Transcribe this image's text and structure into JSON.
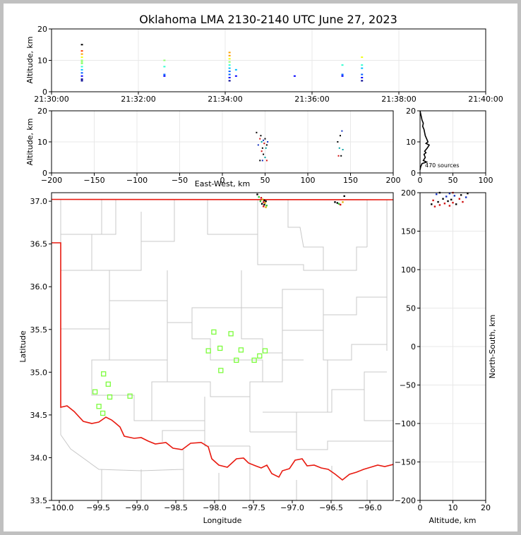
{
  "title": "Oklahoma LMA 2130-2140 UTC June 27, 2023",
  "chart_data": [
    {
      "id": "time_height",
      "type": "scatter",
      "xlabel": "",
      "ylabel": "Altitude, km",
      "xlim": [
        "21:30:00",
        "21:40:00"
      ],
      "ylim": [
        0,
        20
      ],
      "xticks": [
        "21:30:00",
        "21:32:00",
        "21:34:00",
        "21:36:00",
        "21:38:00",
        "21:40:00"
      ],
      "yticks": [
        0,
        10,
        20
      ],
      "grid": true,
      "color_by": "time",
      "points": [
        {
          "t": 0.7,
          "alts": [
            3.5,
            4,
            5,
            6,
            7,
            8,
            9,
            9.5,
            10,
            11,
            12,
            13,
            15
          ]
        },
        {
          "t": 2.6,
          "alts": [
            5,
            5.5,
            8,
            10
          ]
        },
        {
          "t": 4.1,
          "alts": [
            3.5,
            4.5,
            5.5,
            6.5,
            7.5,
            8.5,
            9.5,
            10.5,
            11.5,
            12.5
          ]
        },
        {
          "t": 4.25,
          "alts": [
            5,
            7
          ]
        },
        {
          "t": 5.6,
          "alts": [
            5
          ]
        },
        {
          "t": 6.7,
          "alts": [
            5,
            5.5,
            8.5
          ]
        },
        {
          "t": 7.15,
          "alts": [
            3.5,
            4.5,
            5.5,
            7.5,
            8.5,
            11
          ]
        }
      ]
    },
    {
      "id": "ew_altitude",
      "type": "scatter",
      "xlabel": "East-West, km",
      "ylabel": "Altitude, km",
      "xlim": [
        -200,
        200
      ],
      "ylim": [
        0,
        20
      ],
      "xticks": [
        -200,
        -150,
        -100,
        -50,
        0,
        50,
        100,
        150,
        200
      ],
      "yticks": [
        0,
        10,
        20
      ],
      "grid": true,
      "points": [
        [
          40,
          13
        ],
        [
          42,
          9
        ],
        [
          44,
          11
        ],
        [
          45,
          12
        ],
        [
          46,
          10
        ],
        [
          47,
          8
        ],
        [
          48,
          10.5
        ],
        [
          49,
          9.5
        ],
        [
          50,
          11
        ],
        [
          51,
          8
        ],
        [
          52,
          9
        ],
        [
          53,
          10
        ],
        [
          46,
          7
        ],
        [
          48,
          6
        ],
        [
          50,
          5
        ],
        [
          44,
          4
        ],
        [
          47,
          4
        ],
        [
          52,
          4
        ],
        [
          135,
          10
        ],
        [
          137,
          8
        ],
        [
          138,
          12
        ],
        [
          140,
          13.5
        ],
        [
          136,
          5.5
        ],
        [
          139,
          5.5
        ],
        [
          141,
          7.5
        ]
      ]
    },
    {
      "id": "altitude_histogram",
      "type": "line",
      "xlim": [
        0,
        100
      ],
      "ylim": [
        0,
        20
      ],
      "xticks": [
        0,
        50,
        100
      ],
      "yticks": [
        0,
        10,
        20
      ],
      "annotation": "470 sources",
      "profile": [
        [
          0,
          20
        ],
        [
          1,
          19
        ],
        [
          2,
          18
        ],
        [
          3,
          17
        ],
        [
          5,
          16
        ],
        [
          4,
          15
        ],
        [
          6,
          14
        ],
        [
          7,
          13
        ],
        [
          8,
          12
        ],
        [
          10,
          11
        ],
        [
          12,
          10
        ],
        [
          9,
          9.5
        ],
        [
          14,
          9
        ],
        [
          11,
          8
        ],
        [
          7,
          7
        ],
        [
          9,
          6.5
        ],
        [
          6,
          6
        ],
        [
          8,
          5
        ],
        [
          5,
          4
        ],
        [
          10,
          3.5
        ],
        [
          3,
          3
        ],
        [
          1,
          2
        ],
        [
          0,
          1
        ]
      ]
    },
    {
      "id": "plan_view",
      "type": "scatter",
      "xlabel": "Longitude",
      "ylabel": "Latitude",
      "xlim": [
        -100.1,
        -95.7
      ],
      "ylim": [
        33.5,
        37.1
      ],
      "xticks": [
        -100.0,
        -99.5,
        -99.0,
        -98.5,
        -98.0,
        -97.5,
        -97.0,
        -96.5,
        -96.0
      ],
      "xtick_labels": [
        "−100.0",
        "−99.5",
        "−99.0",
        "−98.5",
        "−98.0",
        "−97.5",
        "−97.0",
        "−96.5",
        "−96.0"
      ],
      "yticks": [
        33.5,
        34.0,
        34.5,
        35.0,
        35.5,
        36.0,
        36.5,
        37.0
      ],
      "ytick_labels": [
        "33.5",
        "34.0",
        "34.5",
        "35.0",
        "35.5",
        "36.0",
        "36.5",
        "37.0"
      ],
      "stations": [
        [
          -98.01,
          35.47
        ],
        [
          -97.79,
          35.45
        ],
        [
          -98.08,
          35.25
        ],
        [
          -97.93,
          35.28
        ],
        [
          -97.66,
          35.26
        ],
        [
          -97.35,
          35.25
        ],
        [
          -97.42,
          35.19
        ],
        [
          -97.72,
          35.14
        ],
        [
          -97.49,
          35.14
        ],
        [
          -97.92,
          35.02
        ],
        [
          -99.43,
          34.98
        ],
        [
          -99.37,
          34.86
        ],
        [
          -99.54,
          34.77
        ],
        [
          -99.35,
          34.71
        ],
        [
          -99.09,
          34.72
        ],
        [
          -99.49,
          34.6
        ],
        [
          -99.44,
          34.52
        ]
      ],
      "lightning": [
        [
          -97.45,
          37.08
        ],
        [
          -97.43,
          37.05
        ],
        [
          -97.4,
          37.04
        ],
        [
          -97.38,
          37.02
        ],
        [
          -97.36,
          37.01
        ],
        [
          -97.34,
          37.0
        ],
        [
          -97.41,
          37.0
        ],
        [
          -97.37,
          36.99
        ],
        [
          -97.35,
          36.98
        ],
        [
          -97.39,
          36.97
        ],
        [
          -97.36,
          36.96
        ],
        [
          -97.33,
          36.95
        ],
        [
          -97.37,
          36.94
        ],
        [
          -97.34,
          36.93
        ],
        [
          -96.45,
          36.99
        ],
        [
          -96.42,
          36.98
        ],
        [
          -96.4,
          36.97
        ],
        [
          -96.38,
          36.96
        ],
        [
          -96.35,
          36.99
        ],
        [
          -96.33,
          37.06
        ]
      ]
    },
    {
      "id": "altitude_ns",
      "type": "scatter",
      "xlabel": "Altitude, km",
      "ylabel": "North-South, km",
      "xlim": [
        0,
        20
      ],
      "ylim": [
        -200,
        200
      ],
      "xticks": [
        0,
        10,
        20
      ],
      "yticks": [
        -200,
        -150,
        -100,
        -50,
        0,
        50,
        100,
        150,
        200
      ],
      "points": [
        [
          3.5,
          185
        ],
        [
          4,
          190
        ],
        [
          5,
          198
        ],
        [
          5.5,
          188
        ],
        [
          6,
          184
        ],
        [
          7,
          192
        ],
        [
          7.5,
          186
        ],
        [
          8,
          195
        ],
        [
          8.5,
          189
        ],
        [
          9,
          183
        ],
        [
          9.5,
          191
        ],
        [
          10,
          187
        ],
        [
          10.5,
          196
        ],
        [
          11,
          185
        ],
        [
          12,
          192
        ],
        [
          12.5,
          197
        ],
        [
          13,
          188
        ],
        [
          14,
          194
        ],
        [
          14.5,
          199
        ],
        [
          10,
          200
        ],
        [
          6,
          200
        ],
        [
          4.5,
          182
        ],
        [
          9,
          199
        ]
      ]
    }
  ]
}
